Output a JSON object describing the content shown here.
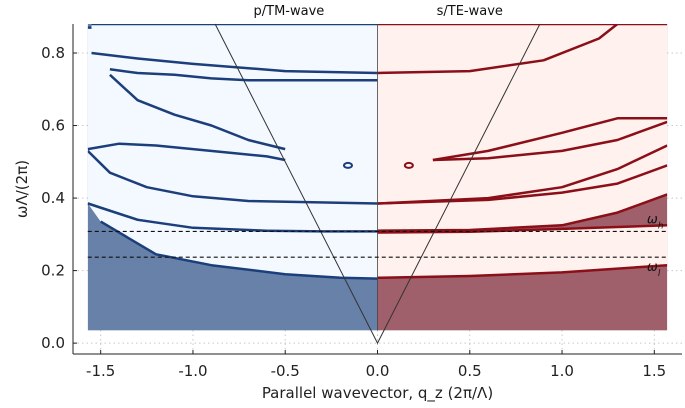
{
  "chart_data": {
    "type": "heatmap",
    "panel_titles": {
      "left": "p/TM-wave",
      "right": "s/TE-wave"
    },
    "xlabel": "Parallel wavevector, q_z (2π/Λ)",
    "ylabel": "ωΛ/(2π)",
    "xlim": [
      -1.65,
      1.65
    ],
    "ylim": [
      -0.03,
      0.88
    ],
    "heatmap_extent": {
      "x": [
        -1.57,
        1.57
      ],
      "y": [
        0.035,
        0.88
      ]
    },
    "xticks": [
      -1.5,
      -1.0,
      -0.5,
      0.0,
      0.5,
      1.0,
      1.5
    ],
    "xtick_labels": [
      "-1.5",
      "-1.0",
      "-0.5",
      "0.0",
      "0.5",
      "1.0",
      "1.5"
    ],
    "yticks": [
      0.0,
      0.2,
      0.4,
      0.6,
      0.8
    ],
    "ytick_labels": [
      "0.0",
      "0.2",
      "0.4",
      "0.6",
      "0.8"
    ],
    "grid": true,
    "colors": {
      "tm_fill": "#6781a8",
      "te_fill": "#a0606b",
      "tm_band": "#f4f9ff",
      "te_band": "#fff1ed",
      "tm_edge": "#1c3f7c",
      "te_edge": "#8b0f18",
      "light_line": "#333333",
      "dashed": "#111111"
    },
    "light_line": {
      "points": [
        [
          -1.0,
          1.0
        ],
        [
          0.0,
          0.0
        ],
        [
          1.0,
          1.0
        ]
      ]
    },
    "hlines": [
      {
        "label": "ω_h",
        "y": 0.308
      },
      {
        "label": "ω_l",
        "y": 0.237
      }
    ],
    "tm_bands": [
      {
        "lower": [
          [
            -1.57,
            0.385
          ],
          [
            -1.3,
            0.34
          ],
          [
            -1.0,
            0.315
          ],
          [
            -0.5,
            0.308
          ],
          [
            0.0,
            0.305
          ]
        ],
        "upper": [
          [
            -1.57,
            0.87
          ],
          [
            -1.2,
            0.87
          ],
          [
            -0.8,
            0.87
          ],
          [
            -0.4,
            0.87
          ],
          [
            0.0,
            0.87
          ]
        ]
      },
      {
        "lower": [
          [
            -1.5,
            0.335
          ],
          [
            -1.2,
            0.245
          ],
          [
            -0.9,
            0.215
          ],
          [
            -0.5,
            0.19
          ],
          [
            -0.2,
            0.18
          ],
          [
            0.0,
            0.178
          ]
        ],
        "upper": [
          [
            -1.57,
            0.385
          ],
          [
            -1.3,
            0.34
          ],
          [
            -1.0,
            0.318
          ],
          [
            -0.6,
            0.31
          ],
          [
            -0.3,
            0.308
          ],
          [
            0.0,
            0.308
          ]
        ]
      },
      {
        "lower": [
          [
            -1.57,
            0.53
          ],
          [
            -1.45,
            0.47
          ],
          [
            -1.25,
            0.43
          ],
          [
            -1.0,
            0.405
          ],
          [
            -0.7,
            0.392
          ],
          [
            0.0,
            0.385
          ]
        ],
        "upper": [
          [
            -1.57,
            0.535
          ],
          [
            -1.4,
            0.55
          ],
          [
            -1.2,
            0.545
          ],
          [
            -1.0,
            0.535
          ],
          [
            -0.8,
            0.525
          ],
          [
            -0.6,
            0.515
          ],
          [
            -0.5,
            0.505
          ]
        ]
      },
      {
        "lower": [
          [
            -1.45,
            0.74
          ],
          [
            -1.3,
            0.67
          ],
          [
            -1.1,
            0.63
          ],
          [
            -0.9,
            0.6
          ],
          [
            -0.7,
            0.56
          ],
          [
            -0.5,
            0.535
          ]
        ],
        "upper": [
          [
            -1.45,
            0.755
          ],
          [
            -1.3,
            0.745
          ],
          [
            -1.1,
            0.74
          ],
          [
            -0.9,
            0.73
          ],
          [
            -0.7,
            0.725
          ],
          [
            0.0,
            0.725
          ]
        ]
      },
      {
        "lower": [
          [
            -1.55,
            0.8
          ],
          [
            -1.3,
            0.785
          ],
          [
            -1.0,
            0.77
          ],
          [
            -0.5,
            0.75
          ],
          [
            0.0,
            0.745
          ]
        ],
        "upper": [
          [
            -1.55,
            0.88
          ],
          [
            -1.0,
            0.88
          ],
          [
            -0.5,
            0.88
          ],
          [
            0.0,
            0.88
          ]
        ]
      }
    ],
    "te_bands": [
      {
        "lower": [
          [
            0.0,
            0.31
          ],
          [
            0.5,
            0.312
          ],
          [
            1.0,
            0.325
          ],
          [
            1.3,
            0.36
          ],
          [
            1.57,
            0.41
          ]
        ],
        "upper": [
          [
            0.0,
            0.88
          ],
          [
            0.4,
            0.88
          ],
          [
            0.8,
            0.88
          ],
          [
            1.2,
            0.88
          ],
          [
            1.57,
            0.88
          ]
        ]
      },
      {
        "lower": [
          [
            0.0,
            0.18
          ],
          [
            0.5,
            0.185
          ],
          [
            1.0,
            0.195
          ],
          [
            1.57,
            0.215
          ]
        ],
        "upper": [
          [
            0.0,
            0.305
          ],
          [
            0.5,
            0.307
          ],
          [
            1.0,
            0.315
          ],
          [
            1.57,
            0.325
          ]
        ]
      },
      {
        "lower": [
          [
            0.0,
            0.385
          ],
          [
            0.6,
            0.395
          ],
          [
            1.0,
            0.415
          ],
          [
            1.3,
            0.44
          ],
          [
            1.57,
            0.49
          ]
        ],
        "upper": [
          [
            0.0,
            0.385
          ],
          [
            0.6,
            0.4
          ],
          [
            1.0,
            0.43
          ],
          [
            1.3,
            0.48
          ],
          [
            1.57,
            0.545
          ]
        ]
      },
      {
        "lower": [
          [
            0.3,
            0.505
          ],
          [
            0.6,
            0.51
          ],
          [
            1.0,
            0.53
          ],
          [
            1.3,
            0.56
          ],
          [
            1.57,
            0.61
          ]
        ],
        "upper": [
          [
            0.3,
            0.505
          ],
          [
            0.6,
            0.53
          ],
          [
            1.0,
            0.58
          ],
          [
            1.3,
            0.62
          ],
          [
            1.57,
            0.62
          ]
        ]
      },
      {
        "lower": [
          [
            0.0,
            0.745
          ],
          [
            0.5,
            0.75
          ],
          [
            0.9,
            0.78
          ],
          [
            1.2,
            0.84
          ],
          [
            1.3,
            0.88
          ]
        ],
        "upper": [
          [
            0.0,
            0.88
          ],
          [
            0.5,
            0.88
          ],
          [
            0.9,
            0.88
          ],
          [
            1.2,
            0.88
          ],
          [
            1.3,
            0.88
          ]
        ]
      }
    ],
    "dots": [
      {
        "side": "tm",
        "x": -0.16,
        "y": 0.49
      },
      {
        "side": "te",
        "x": 0.17,
        "y": 0.49
      }
    ]
  }
}
